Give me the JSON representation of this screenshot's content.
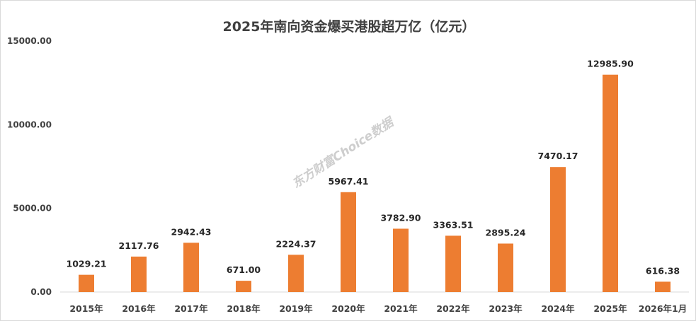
{
  "chart_data": {
    "type": "bar",
    "title": "2025年南向资金爆买港股超万亿（亿元）",
    "categories": [
      "2015年",
      "2016年",
      "2017年",
      "2018年",
      "2019年",
      "2020年",
      "2021年",
      "2022年",
      "2023年",
      "2024年",
      "2025年",
      "2026年1月"
    ],
    "values": [
      1029.21,
      2117.76,
      2942.43,
      671.0,
      2224.37,
      5967.41,
      3782.9,
      3363.51,
      2895.24,
      7470.17,
      12985.9,
      616.38
    ],
    "data_labels": [
      "1029.21",
      "2117.76",
      "2942.43",
      "671.00",
      "2224.37",
      "5967.41",
      "3782.90",
      "3363.51",
      "2895.24",
      "7470.17",
      "12985.90",
      "616.38"
    ],
    "yticks": [
      "0.00",
      "5000.00",
      "10000.00",
      "15000.00"
    ],
    "ylim": [
      0,
      15000
    ],
    "grid": false,
    "bar_color": "#ED7D31",
    "xlabel": "",
    "ylabel": ""
  },
  "watermark": "东方财富Choice数据"
}
